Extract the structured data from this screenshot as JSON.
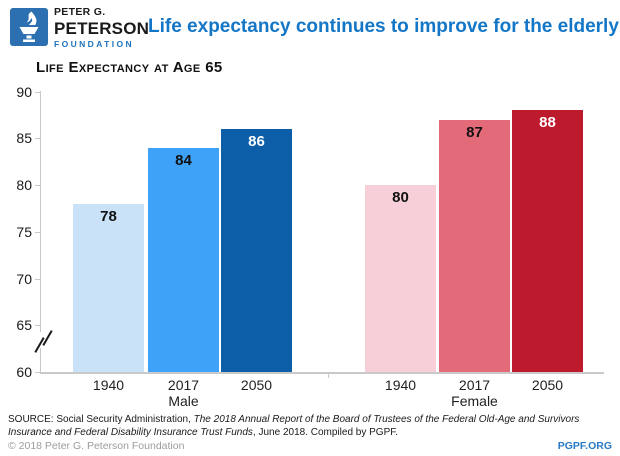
{
  "header": {
    "logo": {
      "line1": "PETER G.",
      "line2": "PETERSON",
      "line3": "FOUNDATION"
    },
    "title": "Life expectancy continues to improve for the elderly"
  },
  "chart_data": {
    "type": "bar",
    "title": "Life Expectancy at Age 65",
    "ylim": [
      60,
      90
    ],
    "yticks": [
      90,
      85,
      80,
      75,
      70,
      65,
      60
    ],
    "axis_break_between": [
      65,
      60
    ],
    "grid": false,
    "legend": "none",
    "categories": [
      "1940",
      "2017",
      "2050"
    ],
    "groups": [
      {
        "name": "Male",
        "categories": [
          "1940",
          "2017",
          "2050"
        ],
        "values": [
          78,
          84,
          86
        ],
        "bar_colors": [
          "#c9e2f8",
          "#3da2f8",
          "#0c5ea9"
        ],
        "value_label_colors": [
          "#111111",
          "#111111",
          "#ffffff"
        ]
      },
      {
        "name": "Female",
        "categories": [
          "1940",
          "2017",
          "2050"
        ],
        "values": [
          80,
          87,
          88
        ],
        "bar_colors": [
          "#f7cfd8",
          "#e36b79",
          "#be1a2e"
        ],
        "value_label_colors": [
          "#111111",
          "#111111",
          "#ffffff"
        ]
      }
    ]
  },
  "footer": {
    "source_prefix": "SOURCE: Social Security Administration, ",
    "source_italic": "The 2018 Annual Report of the Board of Trustees of the Federal Old-Age and Survivors Insurance and Federal Disability Insurance Trust Funds",
    "source_suffix": ", June 2018. Compiled by PGPF.",
    "copyright": "© 2018 Peter G. Peterson Foundation",
    "site": "PGPF.ORG"
  },
  "colors": {
    "title_blue": "#1476c6",
    "logo_blue": "#2c70b2",
    "foundation_blue": "#1e72bc",
    "axis_gray": "#c9c9c9",
    "copyright_gray": "#9c9c9c",
    "site_blue": "#2779c4"
  }
}
